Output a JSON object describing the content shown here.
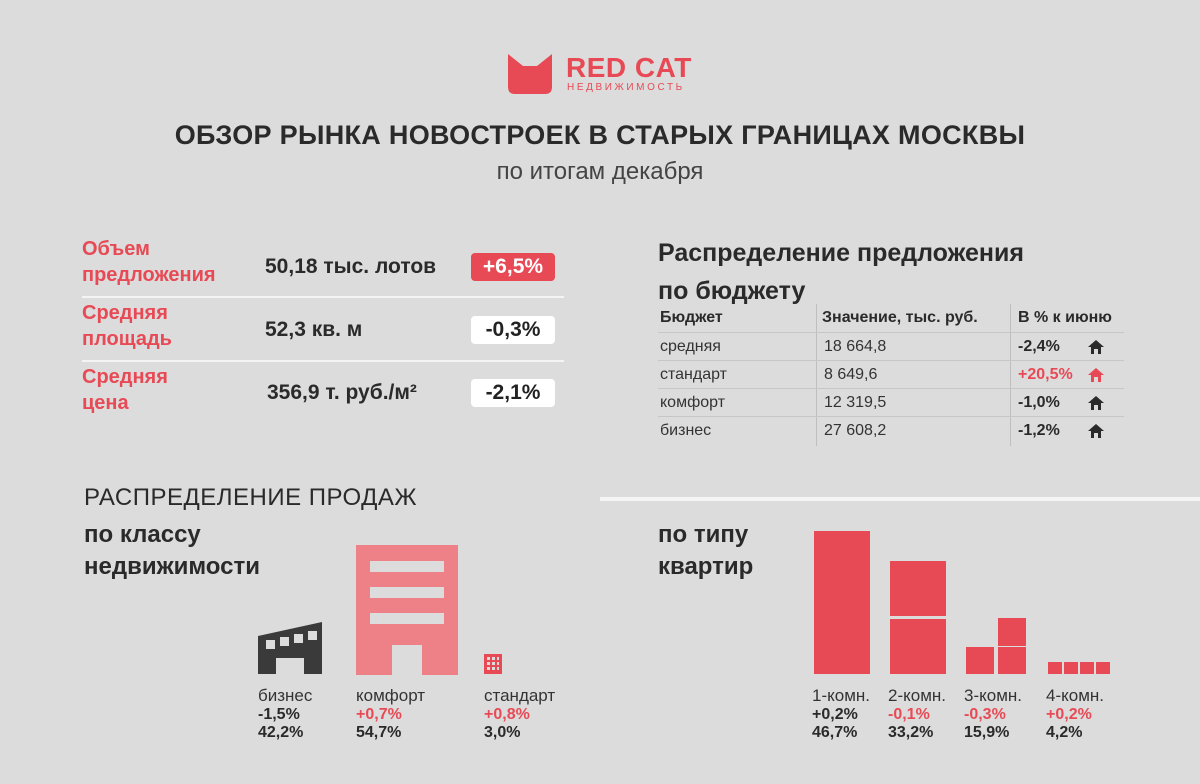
{
  "brand": {
    "name": "RED CAT",
    "sub": "НЕДВИЖИМОСТЬ",
    "color": "#e84a55"
  },
  "title": "ОБЗОР РЫНКА НОВОСТРОЕК В СТАРЫХ ГРАНИЦАХ МОСКВЫ",
  "subtitle": "по итогам декабря",
  "kpis": [
    {
      "label_line1": "Объем",
      "label_line2": "предложения",
      "value": "50,18 тыс. лотов",
      "change": "+6,5%",
      "highlight": true
    },
    {
      "label_line1": "Средняя",
      "label_line2": "площадь",
      "value": "52,3 кв. м",
      "change": "-0,3%",
      "highlight": false
    },
    {
      "label_line1": "Средняя",
      "label_line2": "цена",
      "value": "356,9 т. руб./м²",
      "change": "-2,1%",
      "highlight": false
    }
  ],
  "budget": {
    "title_line1": "Распределение предложения",
    "title_line2": "по бюджету",
    "headers": [
      "Бюджет",
      "Значение, тыс. руб.",
      "В % к июню"
    ],
    "rows": [
      {
        "segment": "средняя",
        "value": "18 664,8",
        "change": "-2,4%",
        "up": false,
        "icon": "house-icon"
      },
      {
        "segment": "стандарт",
        "value": "8 649,6",
        "change": "+20,5%",
        "up": true,
        "icon": "house-icon"
      },
      {
        "segment": "комфорт",
        "value": "12 319,5",
        "change": "-1,0%",
        "up": false,
        "icon": "house-icon"
      },
      {
        "segment": "бизнес",
        "value": "27 608,2",
        "change": "-1,2%",
        "up": false,
        "icon": "house-icon"
      }
    ]
  },
  "sales": {
    "heading": "РАСПРЕДЕЛЕНИЕ ПРОДАЖ",
    "by_class": {
      "title_line1": "по классу",
      "title_line2": "недвижимости",
      "items": [
        {
          "name": "бизнес",
          "change": "-1,5%",
          "share": "42,2%",
          "positive": false,
          "icon": "building-icon"
        },
        {
          "name": "комфорт",
          "change": "+0,7%",
          "share": "54,7%",
          "positive": true,
          "icon": "building-icon"
        },
        {
          "name": "стандарт",
          "change": "+0,8%",
          "share": "3,0%",
          "positive": true,
          "icon": "building-icon"
        }
      ]
    },
    "by_type": {
      "title_line1": "по типу",
      "title_line2": "квартир",
      "items": [
        {
          "name": "1-комн.",
          "change": "+0,2%",
          "share": "46,7%",
          "positive": false,
          "value": 46.7
        },
        {
          "name": "2-комн.",
          "change": "-0,1%",
          "share": "33,2%",
          "positive": true,
          "value": 33.2
        },
        {
          "name": "3-комн.",
          "change": "-0,3%",
          "share": "15,9%",
          "positive": true,
          "value": 15.9
        },
        {
          "name": "4-комн.",
          "change": "+0,2%",
          "share": "4,2%",
          "positive": true,
          "value": 4.2
        }
      ]
    }
  },
  "colors": {
    "accent": "#e84a55",
    "accent_light": "#ee8088",
    "dark": "#3a3a3a",
    "background": "#dcdcdc"
  }
}
